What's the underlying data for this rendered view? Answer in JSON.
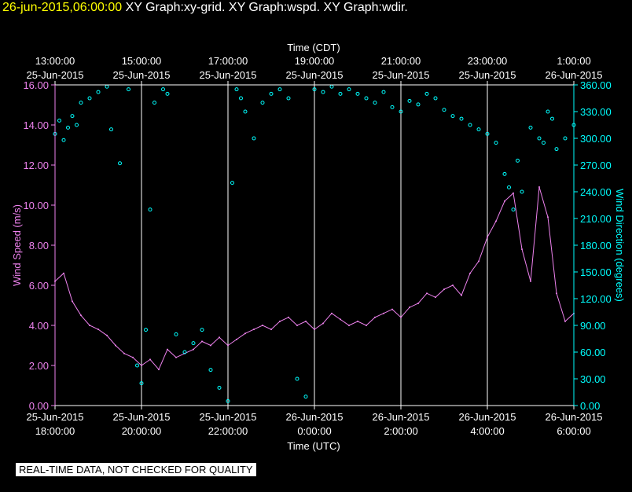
{
  "header": {
    "timestamp": "26-jun-2015,06:00:00",
    "graphs": "XY Graph:xy-grid.  XY Graph:wspd.  XY Graph:wdir."
  },
  "footer": {
    "qc_note": "REAL-TIME DATA, NOT CHECKED FOR QUALITY"
  },
  "chart_data": {
    "type": "line+scatter",
    "top_axis": {
      "title": "Time (CDT)",
      "ticks": [
        {
          "line1": "13:00:00",
          "line2": "25-Jun-2015"
        },
        {
          "line1": "15:00:00",
          "line2": "25-Jun-2015"
        },
        {
          "line1": "17:00:00",
          "line2": "25-Jun-2015"
        },
        {
          "line1": "19:00:00",
          "line2": "25-Jun-2015"
        },
        {
          "line1": "21:00:00",
          "line2": "25-Jun-2015"
        },
        {
          "line1": "23:00:00",
          "line2": "25-Jun-2015"
        },
        {
          "line1": "1:00:00",
          "line2": "26-Jun-2015"
        }
      ]
    },
    "bottom_axis": {
      "title": "Time (UTC)",
      "ticks": [
        {
          "line1": "25-Jun-2015",
          "line2": "18:00:00"
        },
        {
          "line1": "25-Jun-2015",
          "line2": "20:00:00"
        },
        {
          "line1": "25-Jun-2015",
          "line2": "22:00:00"
        },
        {
          "line1": "26-Jun-2015",
          "line2": "0:00:00"
        },
        {
          "line1": "26-Jun-2015",
          "line2": "2:00:00"
        },
        {
          "line1": "26-Jun-2015",
          "line2": "4:00:00"
        },
        {
          "line1": "26-Jun-2015",
          "line2": "6:00:00"
        }
      ]
    },
    "x_range_hours_utc": [
      18,
      30
    ],
    "left_axis": {
      "title": "Wind Speed (m/s)",
      "range": [
        0,
        16
      ],
      "ticks": [
        "0.00",
        "2.00",
        "4.00",
        "6.00",
        "8.00",
        "10.00",
        "12.00",
        "14.00",
        "16.00"
      ],
      "color": "#ee82ee"
    },
    "right_axis": {
      "title": "Wind Direction (degrees)",
      "range": [
        0,
        360
      ],
      "ticks": [
        "0.00",
        "30.00",
        "60.00",
        "90.00",
        "120.00",
        "150.00",
        "180.00",
        "210.00",
        "240.00",
        "270.00",
        "300.00",
        "330.00",
        "360.00"
      ],
      "color": "#00ffff"
    },
    "grid": "vertical lines at each 2-hour tick",
    "series": [
      {
        "name": "wspd",
        "style": "line",
        "color": "#ee82ee",
        "axis": "left",
        "x_hours_utc": [
          18.0,
          18.2,
          18.4,
          18.6,
          18.8,
          19.0,
          19.2,
          19.4,
          19.6,
          19.8,
          20.0,
          20.2,
          20.4,
          20.6,
          20.8,
          21.0,
          21.2,
          21.4,
          21.6,
          21.8,
          22.0,
          22.2,
          22.4,
          22.6,
          22.8,
          23.0,
          23.2,
          23.4,
          23.6,
          23.8,
          24.0,
          24.2,
          24.4,
          24.6,
          24.8,
          25.0,
          25.2,
          25.4,
          25.6,
          25.8,
          26.0,
          26.2,
          26.4,
          26.6,
          26.8,
          27.0,
          27.2,
          27.4,
          27.6,
          27.8,
          28.0,
          28.2,
          28.4,
          28.6,
          28.8,
          29.0,
          29.2,
          29.4,
          29.6,
          29.8,
          30.0
        ],
        "values": [
          6.2,
          6.6,
          5.2,
          4.5,
          4.0,
          3.8,
          3.5,
          3.0,
          2.6,
          2.4,
          2.0,
          2.3,
          1.8,
          2.8,
          2.4,
          2.6,
          2.8,
          3.2,
          3.0,
          3.4,
          3.0,
          3.3,
          3.6,
          3.8,
          4.0,
          3.8,
          4.2,
          4.4,
          4.0,
          4.2,
          3.8,
          4.1,
          4.6,
          4.3,
          4.0,
          4.2,
          4.0,
          4.4,
          4.6,
          4.8,
          4.4,
          4.9,
          5.1,
          5.6,
          5.4,
          5.8,
          6.0,
          5.5,
          6.6,
          7.2,
          8.4,
          9.2,
          10.2,
          10.6,
          7.8,
          6.2,
          10.9,
          9.4,
          5.6,
          4.2,
          4.6
        ]
      },
      {
        "name": "wdir",
        "style": "scatter",
        "color": "#00ffff",
        "axis": "right",
        "x_hours_utc": [
          18.0,
          18.1,
          18.2,
          18.3,
          18.4,
          18.5,
          18.6,
          18.8,
          19.0,
          19.2,
          19.3,
          19.5,
          19.7,
          19.9,
          20.0,
          20.1,
          20.2,
          20.3,
          20.5,
          20.6,
          20.8,
          21.0,
          21.2,
          21.4,
          21.6,
          21.8,
          22.0,
          22.1,
          22.2,
          22.3,
          22.4,
          22.6,
          22.8,
          23.0,
          23.2,
          23.4,
          23.6,
          23.8,
          24.0,
          24.2,
          24.4,
          24.6,
          24.8,
          25.0,
          25.2,
          25.4,
          25.6,
          25.8,
          26.0,
          26.2,
          26.4,
          26.6,
          26.8,
          27.0,
          27.2,
          27.4,
          27.6,
          27.8,
          28.0,
          28.2,
          28.4,
          28.5,
          28.6,
          28.7,
          28.8,
          29.0,
          29.2,
          29.3,
          29.4,
          29.5,
          29.6,
          29.8,
          30.0
        ],
        "values": [
          305,
          320,
          298,
          312,
          325,
          315,
          340,
          345,
          352,
          358,
          310,
          272,
          355,
          45,
          25,
          85,
          220,
          340,
          355,
          350,
          80,
          60,
          70,
          85,
          40,
          20,
          5,
          250,
          355,
          345,
          330,
          300,
          340,
          350,
          355,
          345,
          30,
          10,
          355,
          352,
          358,
          350,
          355,
          350,
          345,
          340,
          352,
          335,
          330,
          342,
          338,
          350,
          345,
          332,
          325,
          322,
          315,
          310,
          305,
          295,
          260,
          245,
          220,
          275,
          240,
          312,
          300,
          295,
          330,
          322,
          288,
          300,
          315
        ]
      }
    ]
  }
}
